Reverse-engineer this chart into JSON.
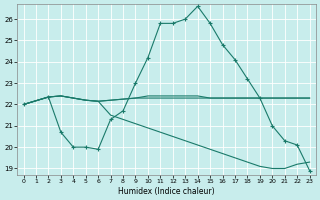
{
  "xlabel": "Humidex (Indice chaleur)",
  "bg_color": "#c8edec",
  "line_color": "#1a7a6a",
  "grid_color": "#b0d8d8",
  "xlim": [
    -0.5,
    23.5
  ],
  "ylim": [
    18.7,
    26.7
  ],
  "yticks": [
    19,
    20,
    21,
    22,
    23,
    24,
    25,
    26
  ],
  "xticks": [
    0,
    1,
    2,
    3,
    4,
    5,
    6,
    7,
    8,
    9,
    10,
    11,
    12,
    13,
    14,
    15,
    16,
    17,
    18,
    19,
    20,
    21,
    22,
    23
  ],
  "line1_x": [
    0,
    2,
    3,
    4,
    5,
    6,
    7,
    8,
    9,
    10,
    11,
    12,
    13,
    14,
    15,
    16,
    17,
    18,
    19,
    20,
    21,
    22,
    23
  ],
  "line1_y": [
    22.0,
    22.35,
    22.4,
    22.3,
    22.2,
    22.15,
    22.2,
    22.25,
    22.3,
    22.3,
    22.3,
    22.3,
    22.3,
    22.3,
    22.3,
    22.3,
    22.3,
    22.3,
    22.3,
    22.3,
    22.3,
    22.3,
    22.3
  ],
  "line2_x": [
    0,
    2,
    3,
    4,
    5,
    6,
    7,
    8,
    9,
    10,
    11,
    12,
    13,
    14,
    15,
    16,
    17,
    18,
    19,
    20,
    21,
    22,
    23
  ],
  "line2_y": [
    22.0,
    22.35,
    22.4,
    22.3,
    22.2,
    22.15,
    22.2,
    22.25,
    22.3,
    22.4,
    22.4,
    22.4,
    22.4,
    22.4,
    22.3,
    22.3,
    22.3,
    22.3,
    22.3,
    22.3,
    22.3,
    22.3,
    22.3
  ],
  "line3_x": [
    0,
    2,
    3,
    4,
    5,
    6,
    7,
    8,
    9,
    10,
    11,
    12,
    13,
    14,
    15,
    16,
    17,
    18,
    19,
    20,
    21,
    22,
    23
  ],
  "line3_y": [
    22.0,
    22.35,
    20.7,
    20.0,
    20.0,
    19.9,
    21.3,
    21.7,
    23.0,
    24.2,
    25.8,
    25.8,
    26.0,
    26.6,
    25.8,
    24.8,
    24.1,
    23.2,
    22.3,
    21.0,
    20.3,
    20.1,
    18.9
  ],
  "line4_x": [
    0,
    2,
    3,
    4,
    5,
    6,
    7,
    8,
    9,
    10,
    11,
    12,
    13,
    14,
    15,
    16,
    17,
    18,
    19,
    20,
    21,
    22,
    23
  ],
  "line4_y": [
    22.0,
    22.35,
    22.4,
    22.3,
    22.2,
    22.15,
    21.5,
    21.3,
    21.1,
    20.9,
    20.7,
    20.5,
    20.3,
    20.1,
    19.9,
    19.7,
    19.5,
    19.3,
    19.1,
    19.0,
    19.0,
    19.2,
    19.3
  ]
}
